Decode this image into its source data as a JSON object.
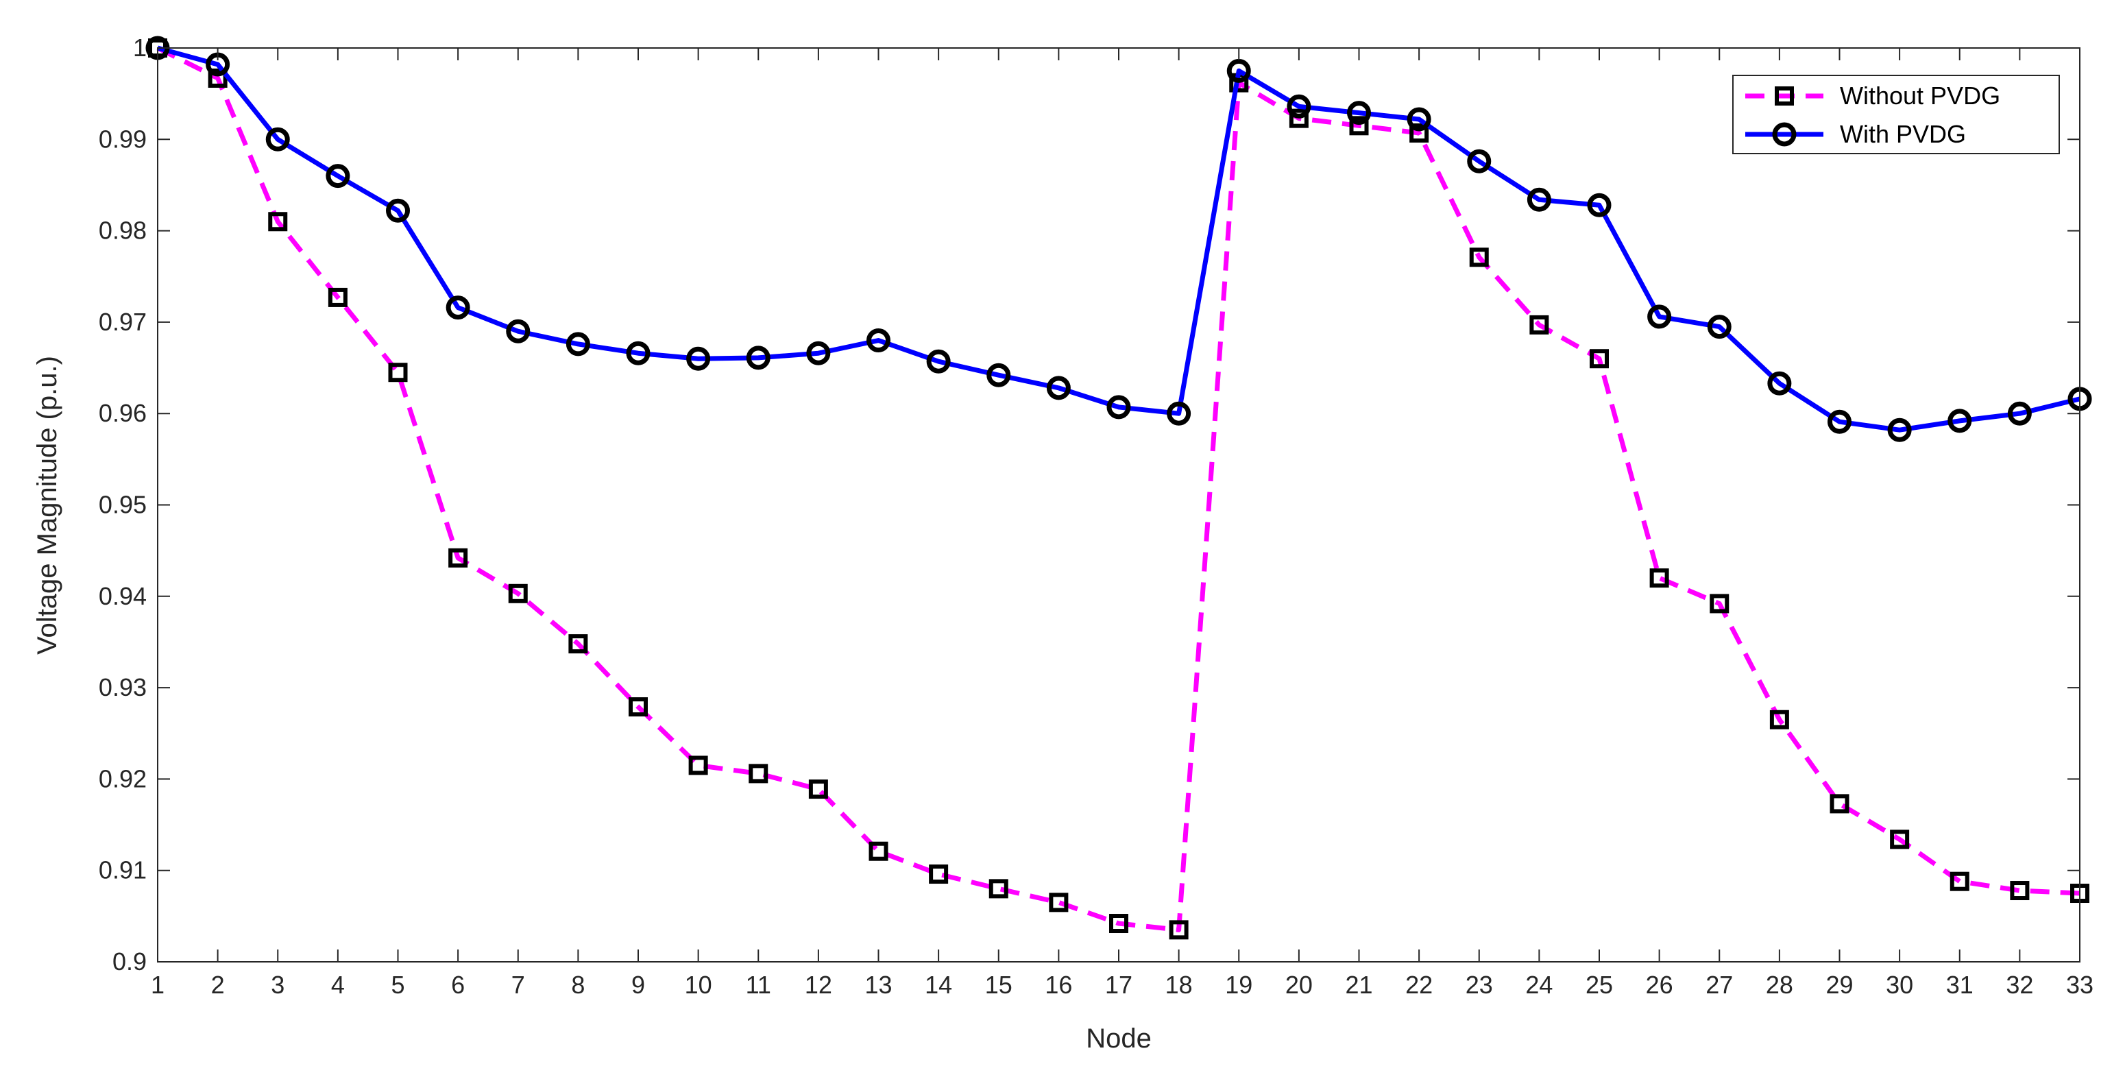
{
  "chart_data": {
    "type": "line",
    "title": "",
    "xlabel": "Node",
    "ylabel": "Voltage Magnitude (p.u.)",
    "xlim": [
      1,
      33
    ],
    "ylim": [
      0.9,
      1.0
    ],
    "x": [
      1,
      2,
      3,
      4,
      5,
      6,
      7,
      8,
      9,
      10,
      11,
      12,
      13,
      14,
      15,
      16,
      17,
      18,
      19,
      20,
      21,
      22,
      23,
      24,
      25,
      26,
      27,
      28,
      29,
      30,
      31,
      32,
      33
    ],
    "xticks": [
      "1",
      "2",
      "3",
      "4",
      "5",
      "6",
      "7",
      "8",
      "9",
      "10",
      "11",
      "12",
      "13",
      "14",
      "15",
      "16",
      "17",
      "18",
      "19",
      "20",
      "21",
      "22",
      "23",
      "24",
      "25",
      "26",
      "27",
      "28",
      "29",
      "30",
      "31",
      "32",
      "33"
    ],
    "yticks": [
      "0.9",
      "0.91",
      "0.92",
      "0.93",
      "0.94",
      "0.95",
      "0.96",
      "0.97",
      "0.98",
      "0.99",
      "1"
    ],
    "grid": false,
    "legend_position": "top-right",
    "series": [
      {
        "name": "Without PVDG",
        "color": "#ff00ff",
        "line_style": "dashed",
        "marker": "square",
        "values": [
          1.0,
          0.9967,
          0.981,
          0.9727,
          0.9645,
          0.9442,
          0.9403,
          0.9348,
          0.9279,
          0.9215,
          0.9206,
          0.9189,
          0.9121,
          0.9096,
          0.908,
          0.9065,
          0.9042,
          0.9035,
          0.9962,
          0.9923,
          0.9915,
          0.9907,
          0.9771,
          0.9697,
          0.966,
          0.942,
          0.9392,
          0.9265,
          0.9173,
          0.9134,
          0.9088,
          0.9078,
          0.9075
        ]
      },
      {
        "name": "With PVDG",
        "color": "#0000ff",
        "line_style": "solid",
        "marker": "circle",
        "values": [
          1.0,
          0.9982,
          0.99,
          0.986,
          0.9822,
          0.9716,
          0.969,
          0.9676,
          0.9666,
          0.966,
          0.9661,
          0.9666,
          0.968,
          0.9657,
          0.9642,
          0.9628,
          0.9607,
          0.96,
          0.9975,
          0.9936,
          0.9929,
          0.9922,
          0.9876,
          0.9834,
          0.9828,
          0.9706,
          0.9695,
          0.9633,
          0.9591,
          0.9582,
          0.9592,
          0.96,
          0.9616
        ]
      }
    ]
  }
}
